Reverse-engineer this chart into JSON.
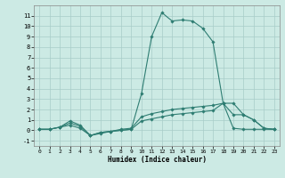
{
  "xlabel": "Humidex (Indice chaleur)",
  "background_color": "#cceae4",
  "line_color": "#2e7d72",
  "xlim": [
    -0.5,
    23.5
  ],
  "ylim": [
    -1.5,
    12.0
  ],
  "yticks": [
    -1,
    0,
    1,
    2,
    3,
    4,
    5,
    6,
    7,
    8,
    9,
    10,
    11
  ],
  "xticks": [
    0,
    1,
    2,
    3,
    4,
    5,
    6,
    7,
    8,
    9,
    10,
    11,
    12,
    13,
    14,
    15,
    16,
    17,
    18,
    19,
    20,
    21,
    22,
    23
  ],
  "curves": [
    {
      "x": [
        0,
        1,
        2,
        3,
        4,
        5,
        6,
        7,
        8,
        9,
        10,
        11,
        12,
        13,
        14,
        15,
        16,
        17,
        18,
        19,
        20,
        21,
        22,
        23
      ],
      "y": [
        0.1,
        0.1,
        0.3,
        0.5,
        0.2,
        -0.5,
        -0.2,
        -0.1,
        0.0,
        0.1,
        3.5,
        9.0,
        11.3,
        10.5,
        10.6,
        10.5,
        9.8,
        8.5,
        2.6,
        2.6,
        1.5,
        1.0,
        0.2,
        0.1
      ]
    },
    {
      "x": [
        0,
        1,
        2,
        3,
        4,
        5,
        6,
        7,
        8,
        9,
        10,
        11,
        12,
        13,
        14,
        15,
        16,
        17,
        18,
        19,
        20,
        21,
        22,
        23
      ],
      "y": [
        0.1,
        0.1,
        0.3,
        0.7,
        0.4,
        -0.5,
        -0.2,
        -0.1,
        0.1,
        0.2,
        1.3,
        1.6,
        1.8,
        2.0,
        2.1,
        2.2,
        2.3,
        2.4,
        2.6,
        1.5,
        1.5,
        1.0,
        0.2,
        0.1
      ]
    },
    {
      "x": [
        0,
        1,
        2,
        3,
        4,
        5,
        6,
        7,
        8,
        9,
        10,
        11,
        12,
        13,
        14,
        15,
        16,
        17,
        18,
        19,
        20,
        21,
        22,
        23
      ],
      "y": [
        0.1,
        0.1,
        0.3,
        0.9,
        0.5,
        -0.5,
        -0.3,
        -0.1,
        0.0,
        0.1,
        0.9,
        1.1,
        1.3,
        1.5,
        1.6,
        1.7,
        1.8,
        1.9,
        2.6,
        0.2,
        0.1,
        0.1,
        0.1,
        0.1
      ]
    }
  ]
}
